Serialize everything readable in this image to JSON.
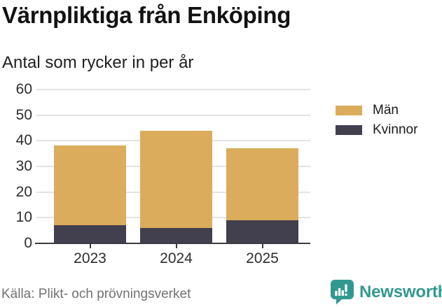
{
  "header": {
    "title": "Värnpliktiga från Enköping",
    "subtitle": "Antal som rycker in per år"
  },
  "chart_data": {
    "type": "bar",
    "stacked": true,
    "title": "Värnpliktiga från Enköping",
    "subtitle": "Antal som rycker in per år",
    "categories": [
      "2023",
      "2024",
      "2025"
    ],
    "series": [
      {
        "name": "Män",
        "color": "#DBAC5B",
        "values": [
          31,
          38,
          28
        ]
      },
      {
        "name": "Kvinnor",
        "color": "#423F4E",
        "values": [
          7,
          6,
          9
        ]
      }
    ],
    "stack_totals": [
      38,
      44,
      37
    ],
    "stack_order_bottom_to_top": [
      "Kvinnor",
      "Män"
    ],
    "xlabel": "",
    "ylabel": "",
    "ylim": [
      0,
      60
    ],
    "yticks": [
      0,
      10,
      20,
      30,
      40,
      50,
      60
    ],
    "grid": "horizontal",
    "legend_position": "right-top"
  },
  "footer": {
    "source": "Källa: Plikt- och prövningsverket",
    "brand": "Newsworthy"
  },
  "colors": {
    "man_gold": "#DBAC5B",
    "kvinnor_navy": "#423F4E",
    "brand_teal": "#319990",
    "gridline": "#E3E3E3",
    "axis": "#3C3B43"
  }
}
